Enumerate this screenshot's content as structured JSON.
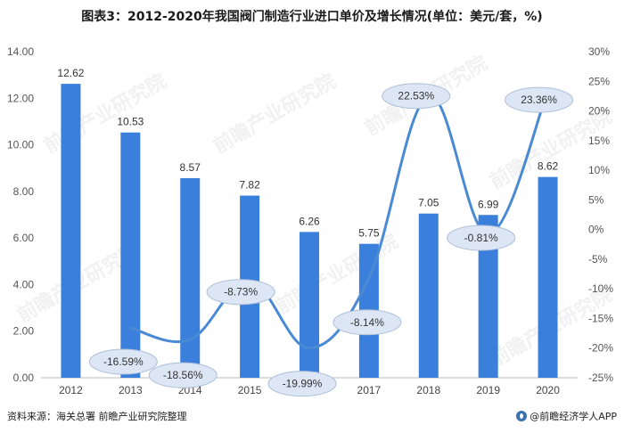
{
  "title": "图表3：2012-2020年我国阀门制造行业进口单价及增长情况(单位：美元/套，%)",
  "footer": {
    "source": "资料来源：海关总署 前瞻产业研究院整理",
    "brand": "@前瞻经济学人APP"
  },
  "watermark": "前瞻产业研究院",
  "colors": {
    "bar": "#3a7fdc",
    "line": "#4a8ad4",
    "label_bubble": "#dce6f4",
    "grid": "#e0e0e0"
  },
  "chart_data": {
    "type": "bar+line",
    "categories": [
      "2012",
      "2013",
      "2014",
      "2015",
      "2016",
      "2017",
      "2018",
      "2019",
      "2020"
    ],
    "bar_series": {
      "values": [
        12.62,
        10.53,
        8.57,
        7.82,
        6.26,
        5.75,
        7.05,
        6.99,
        8.62
      ],
      "labels": [
        "12.62",
        "10.53",
        "8.57",
        "7.82",
        "6.26",
        "5.75",
        "7.05",
        "6.99",
        "8.62"
      ]
    },
    "line_series": {
      "x_categories": [
        "2013",
        "2014",
        "2015",
        "2016",
        "2017",
        "2018",
        "2019",
        "2020"
      ],
      "values": [
        -16.59,
        -18.56,
        -8.73,
        -19.99,
        -8.14,
        22.53,
        -0.81,
        23.36
      ],
      "labels": [
        "-16.59%",
        "-18.56%",
        "-8.73%",
        "-19.99%",
        "-8.14%",
        "22.53%",
        "-0.81%",
        "23.36%"
      ]
    },
    "left_axis": {
      "ylim": [
        0,
        14
      ],
      "ticks": [
        "0.00",
        "2.00",
        "4.00",
        "6.00",
        "8.00",
        "10.00",
        "12.00",
        "14.00"
      ]
    },
    "right_axis": {
      "ylim": [
        -25,
        30
      ],
      "ticks": [
        "-25%",
        "-20%",
        "-15%",
        "-10%",
        "-5%",
        "0%",
        "5%",
        "10%",
        "15%",
        "20%",
        "25%",
        "30%"
      ]
    },
    "grid": false,
    "legend": "none"
  }
}
